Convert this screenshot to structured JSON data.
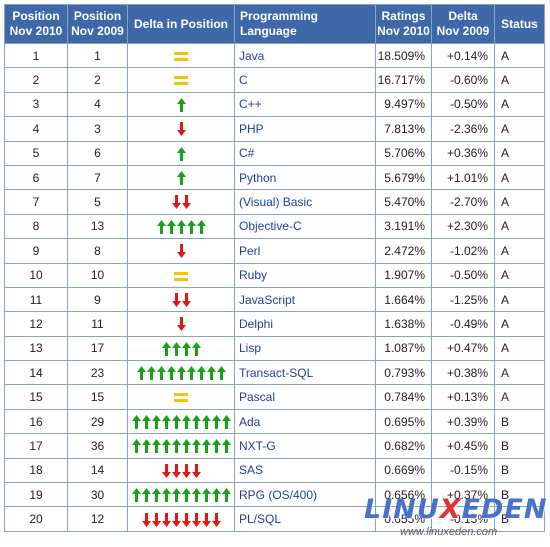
{
  "headers": {
    "pos2010": [
      "Position",
      "Nov 2010"
    ],
    "pos2009": [
      "Position",
      "Nov 2009"
    ],
    "delta_pos": "Delta in Position",
    "language": "Programming Language",
    "ratings": [
      "Ratings",
      "Nov 2010"
    ],
    "delta": [
      "Delta",
      "Nov 2009"
    ],
    "status": "Status"
  },
  "rows": [
    {
      "pos2010": "1",
      "pos2009": "1",
      "dir": "same",
      "count": 1,
      "language": "Java",
      "rating": "18.509%",
      "delta": "+0.14%",
      "status": "A"
    },
    {
      "pos2010": "2",
      "pos2009": "2",
      "dir": "same",
      "count": 1,
      "language": "C",
      "rating": "16.717%",
      "delta": "-0.60%",
      "status": "A"
    },
    {
      "pos2010": "3",
      "pos2009": "4",
      "dir": "up",
      "count": 1,
      "language": "C++",
      "rating": "9.497%",
      "delta": "-0.50%",
      "status": "A"
    },
    {
      "pos2010": "4",
      "pos2009": "3",
      "dir": "down",
      "count": 1,
      "language": "PHP",
      "rating": "7.813%",
      "delta": "-2.36%",
      "status": "A"
    },
    {
      "pos2010": "5",
      "pos2009": "6",
      "dir": "up",
      "count": 1,
      "language": "C#",
      "rating": "5.706%",
      "delta": "+0.36%",
      "status": "A"
    },
    {
      "pos2010": "6",
      "pos2009": "7",
      "dir": "up",
      "count": 1,
      "language": "Python",
      "rating": "5.679%",
      "delta": "+1.01%",
      "status": "A"
    },
    {
      "pos2010": "7",
      "pos2009": "5",
      "dir": "down",
      "count": 2,
      "language": "(Visual) Basic",
      "rating": "5.470%",
      "delta": "-2.70%",
      "status": "A"
    },
    {
      "pos2010": "8",
      "pos2009": "13",
      "dir": "up",
      "count": 5,
      "language": "Objective-C",
      "rating": "3.191%",
      "delta": "+2.30%",
      "status": "A"
    },
    {
      "pos2010": "9",
      "pos2009": "8",
      "dir": "down",
      "count": 1,
      "language": "Perl",
      "rating": "2.472%",
      "delta": "-1.02%",
      "status": "A"
    },
    {
      "pos2010": "10",
      "pos2009": "10",
      "dir": "same",
      "count": 1,
      "language": "Ruby",
      "rating": "1.907%",
      "delta": "-0.50%",
      "status": "A"
    },
    {
      "pos2010": "11",
      "pos2009": "9",
      "dir": "down",
      "count": 2,
      "language": "JavaScript",
      "rating": "1.664%",
      "delta": "-1.25%",
      "status": "A"
    },
    {
      "pos2010": "12",
      "pos2009": "11",
      "dir": "down",
      "count": 1,
      "language": "Delphi",
      "rating": "1.638%",
      "delta": "-0.49%",
      "status": "A"
    },
    {
      "pos2010": "13",
      "pos2009": "17",
      "dir": "up",
      "count": 4,
      "language": "Lisp",
      "rating": "1.087%",
      "delta": "+0.47%",
      "status": "A"
    },
    {
      "pos2010": "14",
      "pos2009": "23",
      "dir": "up",
      "count": 9,
      "language": "Transact-SQL",
      "rating": "0.793%",
      "delta": "+0.38%",
      "status": "A"
    },
    {
      "pos2010": "15",
      "pos2009": "15",
      "dir": "same",
      "count": 1,
      "language": "Pascal",
      "rating": "0.784%",
      "delta": "+0.13%",
      "status": "A"
    },
    {
      "pos2010": "16",
      "pos2009": "29",
      "dir": "up",
      "count": 10,
      "language": "Ada",
      "rating": "0.695%",
      "delta": "+0.39%",
      "status": "B"
    },
    {
      "pos2010": "17",
      "pos2009": "36",
      "dir": "up",
      "count": 10,
      "language": "NXT-G",
      "rating": "0.682%",
      "delta": "+0.45%",
      "status": "B"
    },
    {
      "pos2010": "18",
      "pos2009": "14",
      "dir": "down",
      "count": 4,
      "language": "SAS",
      "rating": "0.669%",
      "delta": "-0.15%",
      "status": "B"
    },
    {
      "pos2010": "19",
      "pos2009": "30",
      "dir": "up",
      "count": 10,
      "language": "RPG (OS/400)",
      "rating": "0.656%",
      "delta": "+0.37%",
      "status": "B"
    },
    {
      "pos2010": "20",
      "pos2009": "12",
      "dir": "down",
      "count": 8,
      "language": "PL/SQL",
      "rating": "0.655%",
      "delta": "-0.15%",
      "status": "B"
    }
  ],
  "colors": {
    "header_bg": "#3e68a8",
    "up_arrow": "#1aa01a",
    "down_arrow": "#e01818",
    "same": "#f5c400",
    "language_text": "#1f3f9a"
  },
  "watermark": {
    "logo_blue1": "LINU",
    "logo_red": "X",
    "logo_blue2": "EDEN",
    "url": "www.linuxeden.com"
  }
}
